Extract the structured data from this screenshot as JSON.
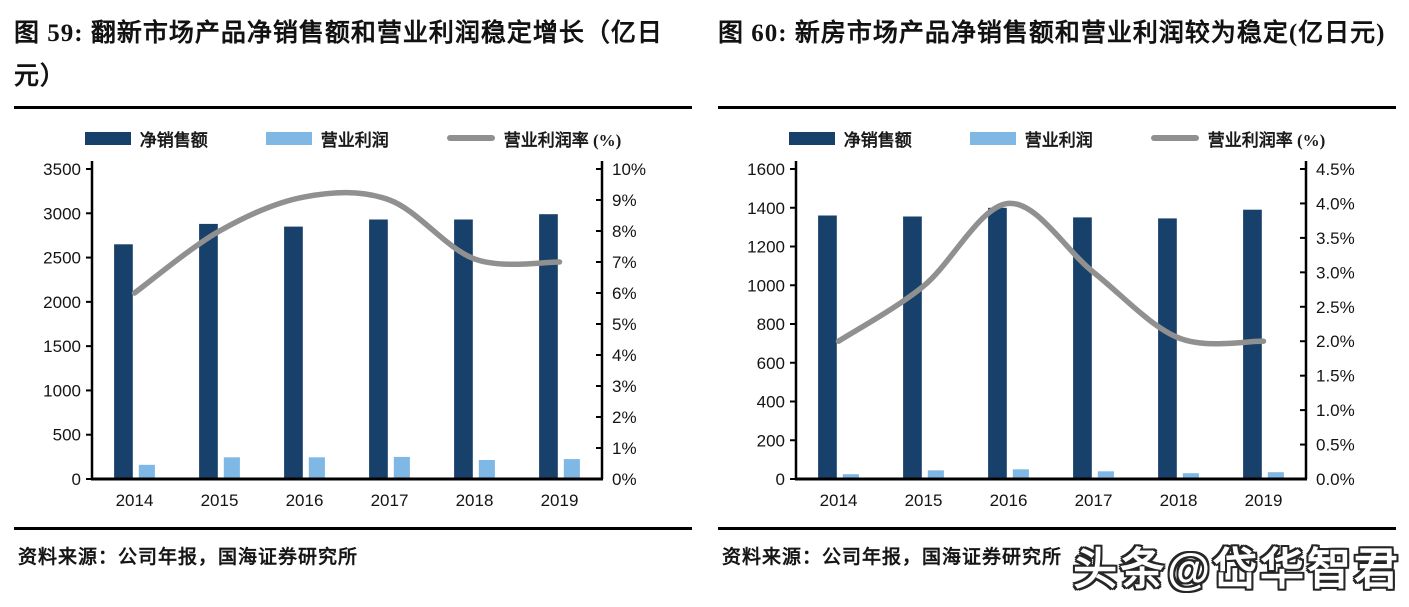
{
  "colors": {
    "net_sales_bar": "#17406b",
    "operating_profit_bar": "#7fb8e5",
    "operating_margin_line": "#909090",
    "axis_line": "#000000",
    "text": "#141414"
  },
  "watermark": "头条@岱华智君",
  "panels": [
    {
      "title": "图  59:  翻新市场产品净销售额和营业利润稳定增长（亿日元）",
      "source": "资料来源：公司年报，国海证券研究所"
    },
    {
      "title": "图 60: 新房市场产品净销售额和营业利润较为稳定(亿日元)",
      "source": "资料来源：公司年报，国海证券研究所"
    }
  ],
  "chart_data": [
    {
      "type": "bar",
      "figure_no": "图 59",
      "title": "翻新市场产品净销售额和营业利润稳定增长（亿日元）",
      "categories": [
        "2014",
        "2015",
        "2016",
        "2017",
        "2018",
        "2019"
      ],
      "series": [
        {
          "name": "净销售额",
          "type": "bar",
          "axis": "left",
          "color": "#17406b",
          "values": [
            2650,
            2880,
            2850,
            2930,
            2930,
            2990
          ]
        },
        {
          "name": "营业利润",
          "type": "bar",
          "axis": "left",
          "color": "#7fb8e5",
          "values": [
            160,
            245,
            245,
            250,
            215,
            225
          ]
        },
        {
          "name": "营业利润率 (%)",
          "type": "line",
          "axis": "right",
          "color": "#909090",
          "values": [
            6.0,
            8.0,
            9.1,
            9.0,
            7.1,
            7.0
          ]
        }
      ],
      "left_axis": {
        "min": 0,
        "max": 3500,
        "tick_labels": [
          "0",
          "500",
          "1000",
          "1500",
          "2000",
          "2500",
          "3000",
          "3500"
        ]
      },
      "right_axis": {
        "min": 0,
        "max": 10,
        "tick_labels": [
          "0%",
          "1%",
          "2%",
          "3%",
          "4%",
          "5%",
          "6%",
          "7%",
          "8%",
          "9%",
          "10%"
        ]
      },
      "legend_position": "top",
      "grid": false
    },
    {
      "type": "bar",
      "figure_no": "图 60",
      "title": "新房市场产品净销售额和营业利润较为稳定(亿日元)",
      "categories": [
        "2014",
        "2015",
        "2016",
        "2017",
        "2018",
        "2019"
      ],
      "series": [
        {
          "name": "净销售额",
          "type": "bar",
          "axis": "left",
          "color": "#17406b",
          "values": [
            1360,
            1355,
            1400,
            1350,
            1345,
            1390
          ]
        },
        {
          "name": "营业利润",
          "type": "bar",
          "axis": "left",
          "color": "#7fb8e5",
          "values": [
            25,
            45,
            50,
            40,
            30,
            35
          ]
        },
        {
          "name": "营业利润率 (%)",
          "type": "line",
          "axis": "right",
          "color": "#909090",
          "values": [
            2.0,
            2.8,
            4.0,
            3.0,
            2.05,
            2.0
          ]
        }
      ],
      "left_axis": {
        "min": 0,
        "max": 1600,
        "tick_labels": [
          "0",
          "200",
          "400",
          "600",
          "800",
          "1000",
          "1200",
          "1400",
          "1600"
        ]
      },
      "right_axis": {
        "min": 0,
        "max": 4.5,
        "tick_labels": [
          "0.0%",
          "0.5%",
          "1.0%",
          "1.5%",
          "2.0%",
          "2.5%",
          "3.0%",
          "3.5%",
          "4.0%",
          "4.5%"
        ]
      },
      "legend_position": "top",
      "grid": false
    }
  ]
}
